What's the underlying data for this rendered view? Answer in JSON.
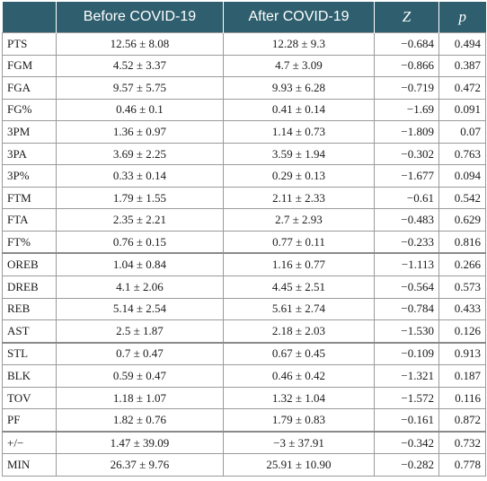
{
  "table": {
    "headers": {
      "metric": "",
      "before": "Before COVID-19",
      "after": "After COVID-19",
      "z": "Z",
      "p": "p"
    },
    "rows": [
      {
        "metric": "PTS",
        "before": "12.56 ± 8.08",
        "after": "12.28 ± 9.3",
        "z": "−0.684",
        "p": "0.494"
      },
      {
        "metric": "FGM",
        "before": "4.52 ± 3.37",
        "after": "4.7 ± 3.09",
        "z": "−0.866",
        "p": "0.387"
      },
      {
        "metric": "FGA",
        "before": "9.57 ± 5.75",
        "after": "9.93 ± 6.28",
        "z": "−0.719",
        "p": "0.472"
      },
      {
        "metric": "FG%",
        "before": "0.46 ± 0.1",
        "after": "0.41 ± 0.14",
        "z": "−1.69",
        "p": "0.091"
      },
      {
        "metric": "3PM",
        "before": "1.36 ± 0.97",
        "after": "1.14 ± 0.73",
        "z": "−1.809",
        "p": "0.07"
      },
      {
        "metric": "3PA",
        "before": "3.69 ± 2.25",
        "after": "3.59 ± 1.94",
        "z": "−0.302",
        "p": "0.763"
      },
      {
        "metric": "3P%",
        "before": "0.33 ± 0.14",
        "after": "0.29 ± 0.13",
        "z": "−1.677",
        "p": "0.094"
      },
      {
        "metric": "FTM",
        "before": "1.79 ± 1.55",
        "after": "2.11 ± 2.33",
        "z": "−0.61",
        "p": "0.542"
      },
      {
        "metric": "FTA",
        "before": "2.35 ± 2.21",
        "after": "2.7 ± 2.93",
        "z": "−0.483",
        "p": "0.629"
      },
      {
        "metric": "FT%",
        "before": "0.76 ± 0.15",
        "after": "0.77 ± 0.11",
        "z": "−0.233",
        "p": "0.816"
      },
      {
        "metric": "OREB",
        "before": "1.04 ± 0.84",
        "after": "1.16 ± 0.77",
        "z": "−1.113",
        "p": "0.266"
      },
      {
        "metric": "DREB",
        "before": "4.1 ± 2.06",
        "after": "4.45 ± 2.51",
        "z": "−0.564",
        "p": "0.573"
      },
      {
        "metric": "REB",
        "before": "5.14 ± 2.54",
        "after": "5.61 ± 2.74",
        "z": "−0.784",
        "p": "0.433"
      },
      {
        "metric": "AST",
        "before": "2.5 ± 1.87",
        "after": "2.18 ± 2.03",
        "z": "−1.530",
        "p": "0.126"
      },
      {
        "metric": "STL",
        "before": "0.7 ± 0.47",
        "after": "0.67 ± 0.45",
        "z": "−0.109",
        "p": "0.913"
      },
      {
        "metric": "BLK",
        "before": "0.59 ± 0.47",
        "after": "0.46 ± 0.42",
        "z": "−1.321",
        "p": "0.187"
      },
      {
        "metric": "TOV",
        "before": "1.18 ± 1.07",
        "after": "1.32 ± 1.04",
        "z": "−1.572",
        "p": "0.116"
      },
      {
        "metric": "PF",
        "before": "1.82 ± 0.76",
        "after": "1.79 ± 0.83",
        "z": "−0.161",
        "p": "0.872"
      },
      {
        "metric": "+/−",
        "before": "1.47 ± 39.09",
        "after": "−3 ± 37.91",
        "z": "−0.342",
        "p": "0.732"
      },
      {
        "metric": "MIN",
        "before": "26.37 ± 9.76",
        "after": "25.91 ± 10.90",
        "z": "−0.282",
        "p": "0.778"
      }
    ]
  },
  "colors": {
    "header_background": "#2f5f6e",
    "header_text": "#ffffff",
    "grid_line": "#9a9a9a"
  }
}
